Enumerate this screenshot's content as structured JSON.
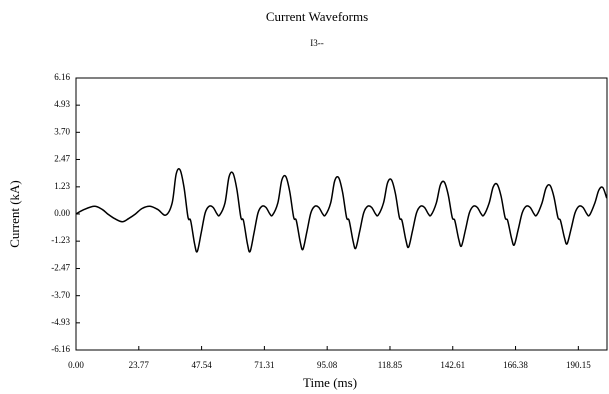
{
  "chart_data": {
    "type": "line",
    "title": "Current Waveforms",
    "subtitle": "I3--",
    "xlabel": "Time (ms)",
    "ylabel": "Current (kA)",
    "xlim": [
      0,
      201
    ],
    "ylim": [
      -6.16,
      6.16
    ],
    "xticks": [
      {
        "value": 0,
        "label": "0.00"
      },
      23.77,
      47.54,
      71.31,
      95.08,
      118.85,
      142.61,
      166.38,
      190.15
    ],
    "yticks": [
      -6.16,
      -4.93,
      {
        "value": -3.7,
        "label": "-3.70"
      },
      -2.47,
      -1.23,
      {
        "value": 0,
        "label": "0.00"
      },
      1.23,
      2.47,
      {
        "value": 3.7,
        "label": "3.70"
      },
      4.93,
      6.16
    ],
    "grid": false,
    "x": [
      0,
      3,
      7,
      10,
      12,
      14.5,
      17.5,
      20,
      22.5,
      25,
      28,
      31,
      34,
      36.4,
      37.9,
      39.4,
      40.9,
      42.4,
      43.4,
      44.9,
      45.9,
      47.4,
      48.9,
      50.4,
      51.9,
      53.4,
      54.4,
      56.4,
      57.9,
      59.4,
      60.9,
      62.4,
      63.4,
      64.9,
      65.9,
      67.4,
      68.9,
      70.4,
      71.9,
      73.4,
      74.4,
      76.4,
      77.9,
      79.4,
      80.9,
      82.4,
      83.4,
      84.9,
      85.9,
      87.4,
      88.9,
      90.4,
      91.9,
      93.4,
      94.4,
      96.4,
      97.9,
      99.4,
      100.9,
      102.4,
      103.4,
      104.9,
      105.9,
      107.4,
      108.9,
      110.4,
      111.9,
      113.4,
      114.4,
      116.4,
      117.9,
      119.4,
      120.9,
      122.4,
      123.4,
      124.9,
      125.9,
      127.4,
      128.9,
      130.4,
      131.9,
      133.4,
      134.4,
      136.4,
      137.9,
      139.4,
      140.9,
      142.4,
      143.4,
      144.9,
      145.9,
      147.4,
      148.9,
      150.4,
      151.9,
      153.4,
      154.4,
      156.4,
      157.9,
      159.4,
      160.9,
      162.4,
      163.4,
      164.9,
      165.9,
      167.4,
      168.9,
      170.4,
      171.9,
      173.4,
      174.4,
      176.4,
      177.9,
      179.4,
      180.9,
      182.4,
      183.4,
      184.9,
      185.9,
      187.4,
      188.9,
      190.4,
      191.9,
      193.4,
      194.4,
      196.4,
      197.9,
      199.4,
      200.9
    ],
    "series": [
      {
        "color": "#000000",
        "values": [
          0,
          0.2,
          0.35,
          0.2,
          0,
          -0.2,
          -0.35,
          -0.2,
          0,
          0.25,
          0.35,
          0.2,
          -0.05,
          0.5,
          1.8,
          2.0,
          1.2,
          -0.15,
          -0.3,
          -1.36,
          -1.7,
          -0.85,
          0.05,
          0.35,
          0.3,
          0,
          -0.05,
          0.5,
          1.67,
          1.85,
          1.11,
          -0.15,
          -0.3,
          -1.36,
          -1.7,
          -0.85,
          0.05,
          0.35,
          0.3,
          0,
          -0.05,
          0.5,
          1.53,
          1.7,
          1.02,
          -0.15,
          -0.3,
          -1.28,
          -1.6,
          -0.8,
          0.05,
          0.35,
          0.3,
          0,
          -0.05,
          0.5,
          1.49,
          1.65,
          0.99,
          -0.15,
          -0.3,
          -1.24,
          -1.55,
          -0.78,
          0.05,
          0.35,
          0.3,
          0,
          -0.05,
          0.5,
          1.4,
          1.55,
          0.93,
          -0.15,
          -0.3,
          -1.2,
          -1.5,
          -0.75,
          0.05,
          0.35,
          0.3,
          0,
          -0.05,
          0.5,
          1.31,
          1.45,
          0.87,
          -0.15,
          -0.3,
          -1.16,
          -1.45,
          -0.73,
          0.05,
          0.35,
          0.3,
          0,
          -0.05,
          0.5,
          1.22,
          1.35,
          0.81,
          -0.15,
          -0.3,
          -1.12,
          -1.4,
          -0.7,
          0.05,
          0.35,
          0.3,
          0,
          -0.05,
          0.5,
          1.17,
          1.3,
          0.78,
          -0.15,
          -0.3,
          -1.08,
          -1.35,
          -0.68,
          0.05,
          0.35,
          0.3,
          0,
          -0.05,
          0.5,
          1.08,
          1.2,
          0.72
        ]
      }
    ]
  }
}
